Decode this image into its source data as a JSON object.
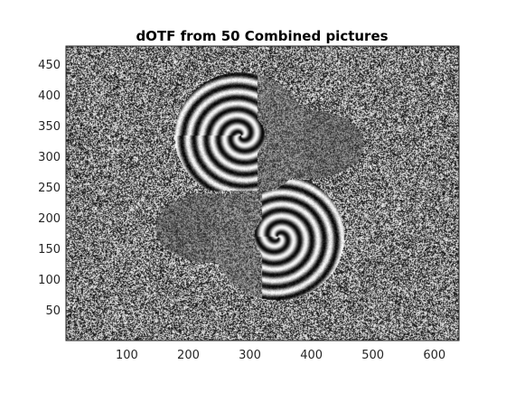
{
  "chart_data": {
    "type": "heatmap",
    "title": "dOTF from 50 Combined pictures",
    "xlabel": "",
    "ylabel": "",
    "xlim": [
      1,
      640
    ],
    "ylim": [
      1,
      480
    ],
    "x_ticks": [
      100,
      200,
      300,
      400,
      500,
      600
    ],
    "y_ticks": [
      50,
      100,
      150,
      200,
      250,
      300,
      350,
      400,
      450
    ],
    "colormap": "gray",
    "grid": false,
    "colorbar": false,
    "content": "phase map: random noise background with two S-shaped fringe lobes near center",
    "colors": {
      "axis": "#262626",
      "background": "#ffffff"
    }
  }
}
